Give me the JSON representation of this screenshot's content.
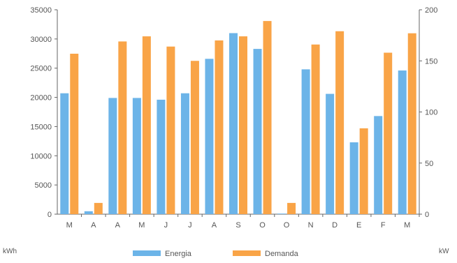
{
  "chart_data": {
    "type": "bar",
    "categories": [
      "M",
      "A",
      "A",
      "M",
      "J",
      "J",
      "A",
      "S",
      "O",
      "O",
      "N",
      "D",
      "E",
      "F",
      "M"
    ],
    "series": [
      {
        "name": "Energia",
        "axis": "left",
        "color": "#6cb4e8",
        "values": [
          20700,
          500,
          19900,
          19900,
          19600,
          20700,
          26600,
          31000,
          28300,
          100,
          24800,
          20600,
          12300,
          16800,
          24600
        ]
      },
      {
        "name": "Demanda",
        "axis": "right",
        "color": "#f9a447",
        "values": [
          157,
          11,
          169,
          174,
          164,
          150,
          170,
          174,
          189,
          11,
          166,
          179,
          84,
          158,
          177
        ]
      }
    ],
    "y_left": {
      "unit": "kWh",
      "ylim": [
        0,
        35000
      ],
      "ticks": [
        "0",
        "5000",
        "10000",
        "15000",
        "20000",
        "25000",
        "30000",
        "35000"
      ]
    },
    "y_right": {
      "unit": "kW",
      "ylim": [
        0,
        200
      ],
      "ticks": [
        "0",
        "50",
        "100",
        "150",
        "200"
      ]
    },
    "grid": false,
    "legend": "bottom"
  }
}
